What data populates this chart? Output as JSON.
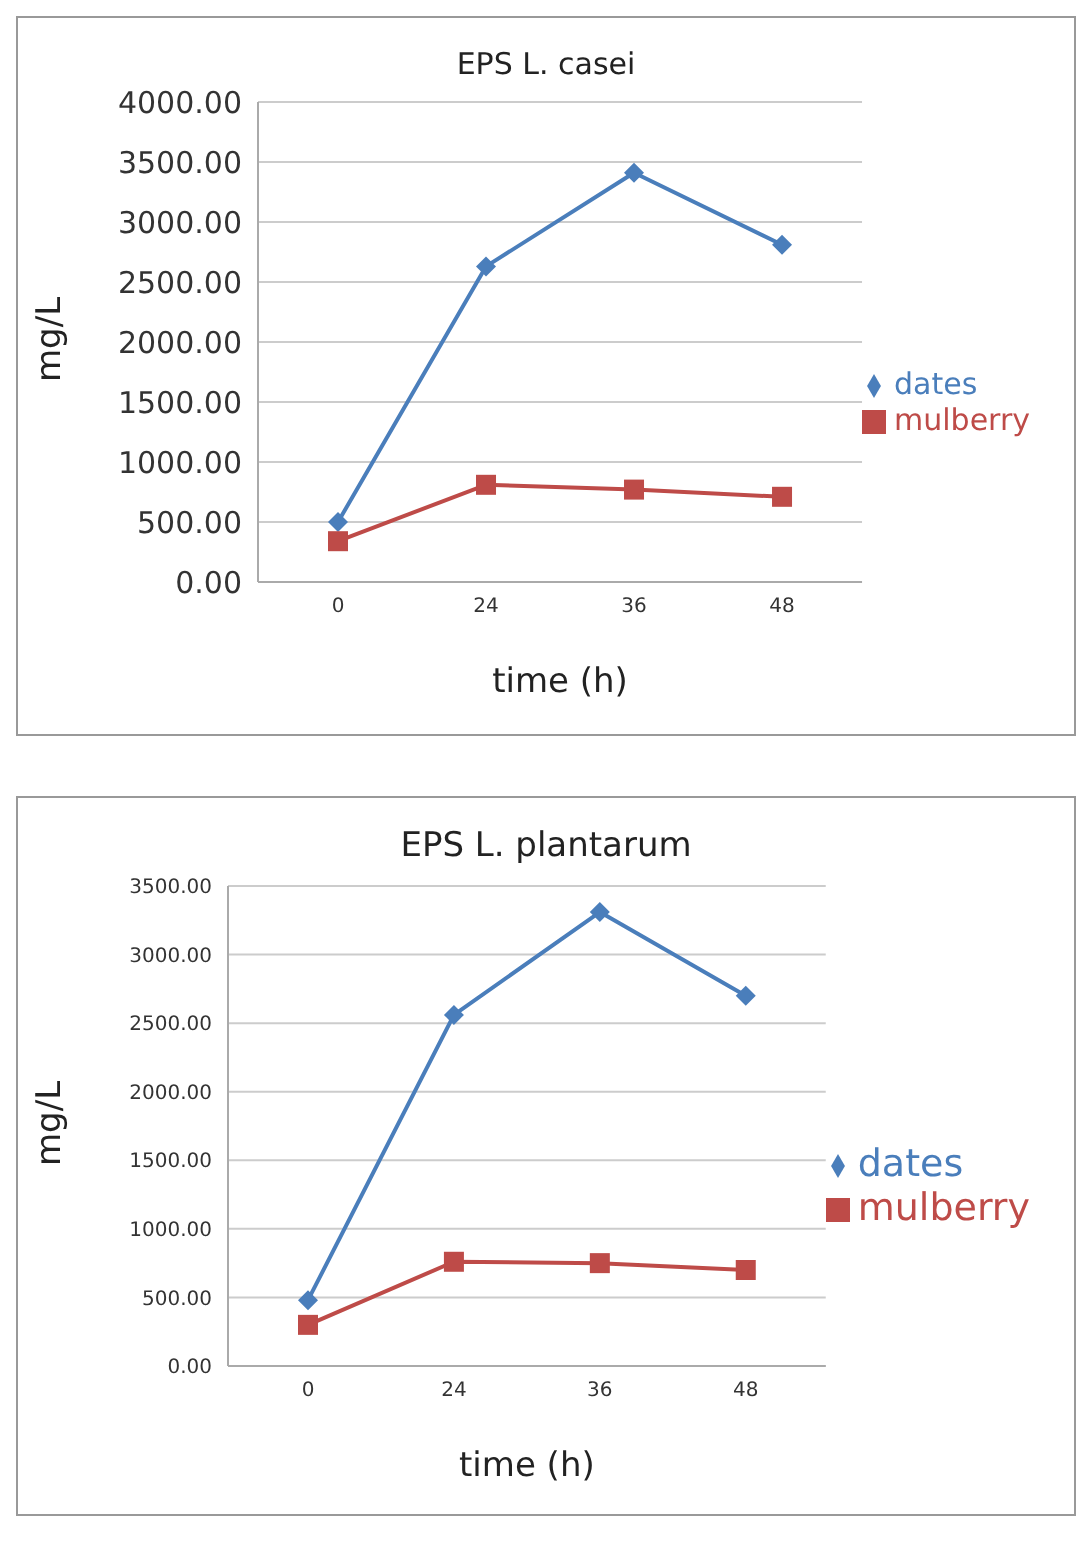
{
  "chart_data": [
    {
      "type": "line",
      "title": "EPS  L. casei",
      "xlabel": "time (h)",
      "ylabel": "mg/L",
      "categories": [
        "0",
        "24",
        "36",
        "48"
      ],
      "series": [
        {
          "name": "dates",
          "color": "#4a7ebb",
          "values": [
            500,
            2630,
            3410,
            2810
          ],
          "marker": "diamond"
        },
        {
          "name": "mulberry",
          "color": "#be4b48",
          "values": [
            340,
            810,
            770,
            710
          ],
          "marker": "square"
        }
      ],
      "ylim": [
        0,
        4000
      ],
      "yticks": [
        {
          "value": 0,
          "label": "0.00"
        },
        {
          "value": 500,
          "label": "500.00"
        },
        {
          "value": 1000,
          "label": "1000.00"
        },
        {
          "value": 1500,
          "label": "1500.00"
        },
        {
          "value": 2000,
          "label": "2000.00"
        },
        {
          "value": 2500,
          "label": "2500.00"
        },
        {
          "value": 3000,
          "label": "3000.00"
        },
        {
          "value": 3500,
          "label": "3500.00"
        },
        {
          "value": 4000,
          "label": "4000.00"
        }
      ],
      "grid": "y",
      "legend": "right",
      "line_style": "solid"
    },
    {
      "type": "line",
      "title": "EPS L. plantarum",
      "xlabel": "time (h)",
      "ylabel": "mg/L",
      "categories": [
        "0",
        "24",
        "36",
        "48"
      ],
      "series": [
        {
          "name": "dates",
          "color": "#4a7ebb",
          "values": [
            480,
            2560,
            3310,
            2700
          ],
          "marker": "diamond"
        },
        {
          "name": "mulberry",
          "color": "#be4b48",
          "values": [
            300,
            760,
            750,
            700
          ],
          "marker": "square"
        }
      ],
      "ylim": [
        0,
        3500
      ],
      "yticks": [
        {
          "value": 0,
          "label": "0.00"
        },
        {
          "value": 500,
          "label": "500.00"
        },
        {
          "value": 1000,
          "label": "1000.00"
        },
        {
          "value": 1500,
          "label": "1500.00"
        },
        {
          "value": 2000,
          "label": "2000.00"
        },
        {
          "value": 2500,
          "label": "2500.00"
        },
        {
          "value": 3000,
          "label": "3000.00"
        },
        {
          "value": 3500,
          "label": "3500.00"
        }
      ],
      "grid": "y",
      "legend": "right",
      "line_style": "solid"
    }
  ]
}
